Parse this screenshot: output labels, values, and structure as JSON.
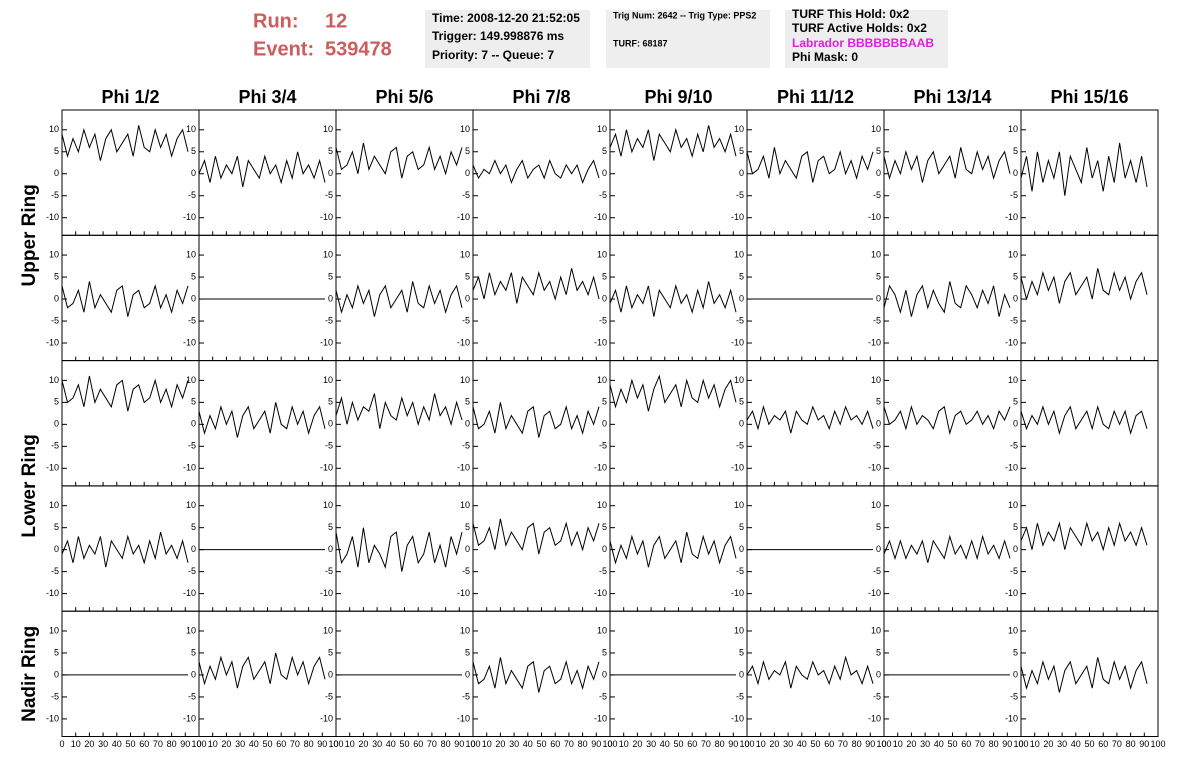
{
  "header": {
    "run_label": "Run:",
    "run": "12",
    "event_label": "Event:",
    "event": "539478",
    "box1": [
      "Time: 2008-12-20 21:52:05",
      "Trigger: 149.998876 ms",
      "Priority: 7 -- Queue: 7"
    ],
    "box2": [
      "Trig Num: 2642 -- Trig Type: PPS2",
      "TURF: 68187"
    ],
    "box3": [
      "TURF This Hold: 0x2",
      "TURF Active Holds: 0x2",
      "Labrador BBBBBBBAAB",
      "Phi Mask: 0"
    ]
  },
  "chart_data": {
    "type": "line",
    "color": "#000000",
    "columns": [
      "Phi 1/2",
      "Phi 3/4",
      "Phi 5/6",
      "Phi 7/8",
      "Phi 9/10",
      "Phi 11/12",
      "Phi 13/14",
      "Phi 15/16"
    ],
    "rows": [
      "Upper Ring",
      "Lower Ring",
      "Nadir Ring"
    ],
    "xlim": [
      0,
      100
    ],
    "ylim": [
      -14,
      14.5
    ],
    "xticks": [
      0,
      10,
      20,
      30,
      40,
      50,
      60,
      70,
      80,
      90,
      100
    ],
    "yticks": [
      -10,
      -5,
      0,
      5,
      10
    ],
    "x": [
      0,
      4,
      8,
      12,
      16,
      20,
      24,
      28,
      32,
      36,
      40,
      44,
      48,
      52,
      56,
      60,
      64,
      68,
      72,
      76,
      80,
      84,
      88,
      92
    ],
    "series": [
      {
        "values": [
          9,
          4,
          8,
          5,
          10,
          6,
          9,
          3,
          8,
          10,
          5,
          7,
          9,
          4,
          11,
          6,
          5,
          10,
          6,
          9,
          4,
          8,
          10,
          5
        ]
      },
      {
        "values": [
          0,
          3,
          -2,
          4,
          -1,
          2,
          0,
          4,
          -3,
          3,
          1,
          -1,
          4,
          0,
          2,
          -2,
          3,
          -1,
          5,
          0,
          2,
          -1,
          3,
          -2
        ]
      },
      {
        "values": [
          6,
          1,
          2,
          5,
          0,
          7,
          1,
          4,
          2,
          0,
          5,
          6,
          -1,
          4,
          5,
          1,
          2,
          6,
          1,
          4,
          0,
          5,
          2,
          6
        ]
      },
      {
        "values": [
          2,
          -1,
          1,
          0,
          3,
          0,
          2,
          -2,
          1,
          3,
          -1,
          1,
          2,
          -1,
          3,
          0,
          -1,
          2,
          0,
          2,
          -2,
          1,
          3,
          -1
        ]
      },
      {
        "values": [
          6,
          9,
          4,
          10,
          5,
          8,
          6,
          10,
          3,
          9,
          7,
          5,
          10,
          6,
          8,
          4,
          9,
          5,
          11,
          6,
          8,
          5,
          9,
          4
        ]
      },
      {
        "values": [
          5,
          0,
          1,
          4,
          -1,
          6,
          0,
          3,
          1,
          -1,
          4,
          5,
          -2,
          3,
          4,
          0,
          1,
          5,
          0,
          3,
          -1,
          4,
          1,
          5
        ]
      },
      {
        "values": [
          4,
          -1,
          3,
          0,
          5,
          1,
          4,
          -2,
          3,
          5,
          0,
          2,
          4,
          -1,
          6,
          1,
          0,
          5,
          1,
          4,
          -1,
          3,
          5,
          0
        ]
      },
      {
        "values": [
          -1,
          4,
          -4,
          5,
          -2,
          3,
          -1,
          5,
          -5,
          4,
          1,
          -2,
          6,
          -1,
          3,
          -4,
          4,
          -2,
          7,
          -1,
          3,
          -2,
          4,
          -3
        ]
      },
      {
        "values": [
          3,
          -2,
          -1,
          2,
          -3,
          4,
          -2,
          1,
          -1,
          -3,
          2,
          3,
          -4,
          1,
          2,
          -2,
          -1,
          3,
          -2,
          1,
          -3,
          2,
          -1,
          3
        ]
      },
      {
        "values": [
          0,
          0,
          0,
          0,
          0,
          0,
          0,
          0,
          0,
          0,
          0,
          0,
          0,
          0,
          0,
          0,
          0,
          0,
          0,
          0,
          0,
          0,
          0,
          0
        ]
      },
      {
        "values": [
          2,
          -3,
          1,
          -2,
          3,
          -1,
          2,
          -4,
          1,
          3,
          -2,
          0,
          2,
          -3,
          4,
          -1,
          -2,
          3,
          -1,
          2,
          -3,
          1,
          3,
          -2
        ]
      },
      {
        "values": [
          2,
          5,
          0,
          6,
          1,
          4,
          2,
          6,
          -1,
          5,
          3,
          1,
          6,
          2,
          4,
          0,
          5,
          1,
          7,
          2,
          4,
          1,
          5,
          0
        ]
      },
      {
        "values": [
          -1,
          2,
          -3,
          3,
          -2,
          1,
          -1,
          3,
          -4,
          2,
          0,
          -2,
          3,
          -1,
          1,
          -3,
          2,
          -2,
          4,
          -1,
          1,
          -2,
          2,
          -3
        ]
      },
      {
        "values": [
          0,
          0,
          0,
          0,
          0,
          0,
          0,
          0,
          0,
          0,
          0,
          0,
          0,
          0,
          0,
          0,
          0,
          0,
          0,
          0,
          0,
          0,
          0,
          0
        ]
      },
      {
        "values": [
          -2,
          3,
          1,
          -3,
          2,
          -4,
          1,
          3,
          -2,
          2,
          -1,
          -3,
          4,
          -1,
          -2,
          3,
          1,
          -2,
          2,
          -1,
          3,
          -4,
          1,
          -2
        ]
      },
      {
        "values": [
          5,
          0,
          4,
          1,
          6,
          2,
          5,
          -1,
          4,
          6,
          1,
          3,
          5,
          0,
          7,
          2,
          1,
          6,
          2,
          5,
          0,
          4,
          6,
          1
        ]
      },
      {
        "values": [
          10,
          5,
          6,
          9,
          4,
          11,
          5,
          8,
          6,
          4,
          9,
          10,
          3,
          8,
          9,
          5,
          6,
          10,
          5,
          8,
          4,
          9,
          6,
          10
        ]
      },
      {
        "values": [
          3,
          -2,
          2,
          -1,
          4,
          0,
          3,
          -3,
          2,
          4,
          -1,
          1,
          3,
          -2,
          5,
          0,
          -1,
          4,
          0,
          3,
          -2,
          2,
          4,
          -1
        ]
      },
      {
        "values": [
          2,
          6,
          0,
          5,
          1,
          4,
          3,
          7,
          -1,
          5,
          2,
          1,
          6,
          2,
          5,
          0,
          4,
          1,
          7,
          2,
          4,
          0,
          5,
          1
        ]
      },
      {
        "values": [
          4,
          -1,
          0,
          3,
          -2,
          5,
          -1,
          2,
          0,
          -2,
          3,
          4,
          -3,
          2,
          3,
          -1,
          0,
          4,
          -1,
          2,
          -2,
          3,
          0,
          4
        ]
      },
      {
        "values": [
          9,
          4,
          8,
          5,
          10,
          6,
          9,
          3,
          8,
          11,
          5,
          7,
          9,
          4,
          10,
          6,
          5,
          10,
          6,
          9,
          4,
          8,
          10,
          5
        ]
      },
      {
        "values": [
          1,
          3,
          -1,
          4,
          0,
          2,
          1,
          3,
          -2,
          3,
          1,
          0,
          4,
          1,
          2,
          -1,
          3,
          0,
          4,
          1,
          2,
          0,
          3,
          -1
        ]
      },
      {
        "values": [
          4,
          0,
          1,
          3,
          -1,
          4,
          0,
          2,
          1,
          -1,
          3,
          4,
          -2,
          2,
          3,
          0,
          1,
          3,
          0,
          2,
          -1,
          3,
          1,
          4
        ]
      },
      {
        "values": [
          3,
          -1,
          2,
          0,
          4,
          0,
          3,
          -2,
          2,
          4,
          -1,
          1,
          3,
          -1,
          4,
          0,
          -1,
          3,
          0,
          3,
          -2,
          2,
          3,
          -1
        ]
      },
      {
        "values": [
          -1,
          2,
          -3,
          3,
          -2,
          1,
          -1,
          3,
          -4,
          2,
          0,
          -2,
          3,
          -1,
          1,
          -3,
          2,
          -2,
          4,
          -1,
          1,
          -2,
          2,
          -3
        ]
      },
      {
        "values": [
          0,
          0,
          0,
          0,
          0,
          0,
          0,
          0,
          0,
          0,
          0,
          0,
          0,
          0,
          0,
          0,
          0,
          0,
          0,
          0,
          0,
          0,
          0,
          0
        ]
      },
      {
        "values": [
          4,
          -3,
          -1,
          3,
          -4,
          5,
          -3,
          1,
          -1,
          -4,
          3,
          4,
          -5,
          1,
          3,
          -3,
          -1,
          4,
          -3,
          1,
          -4,
          3,
          -1,
          4
        ]
      },
      {
        "values": [
          6,
          1,
          2,
          5,
          0,
          7,
          1,
          4,
          2,
          0,
          5,
          6,
          -1,
          4,
          5,
          1,
          2,
          6,
          1,
          4,
          0,
          5,
          2,
          6
        ]
      },
      {
        "values": [
          2,
          -3,
          1,
          -2,
          3,
          -1,
          2,
          -4,
          1,
          3,
          -2,
          0,
          2,
          -3,
          4,
          -1,
          -2,
          3,
          -1,
          2,
          -3,
          1,
          3,
          -2
        ]
      },
      {
        "values": [
          0,
          0,
          0,
          0,
          0,
          0,
          0,
          0,
          0,
          0,
          0,
          0,
          0,
          0,
          0,
          0,
          0,
          0,
          0,
          0,
          0,
          0,
          0,
          0
        ]
      },
      {
        "values": [
          -1,
          2,
          -2,
          2,
          -2,
          1,
          -1,
          2,
          -3,
          2,
          0,
          -2,
          3,
          -1,
          1,
          -2,
          2,
          -2,
          3,
          -1,
          1,
          -2,
          2,
          -2
        ]
      },
      {
        "values": [
          2,
          5,
          0,
          6,
          1,
          4,
          2,
          6,
          0,
          5,
          3,
          1,
          6,
          2,
          4,
          0,
          5,
          1,
          6,
          2,
          4,
          1,
          5,
          1
        ]
      },
      {
        "values": [
          0,
          0,
          0,
          0,
          0,
          0,
          0,
          0,
          0,
          0,
          0,
          0,
          0,
          0,
          0,
          0,
          0,
          0,
          0,
          0,
          0,
          0,
          0,
          0
        ]
      },
      {
        "values": [
          3,
          -2,
          2,
          -1,
          4,
          0,
          3,
          -3,
          2,
          4,
          -1,
          1,
          3,
          -2,
          5,
          0,
          -1,
          4,
          0,
          3,
          -2,
          2,
          4,
          -1
        ]
      },
      {
        "values": [
          0,
          0,
          0,
          0,
          0,
          0,
          0,
          0,
          0,
          0,
          0,
          0,
          0,
          0,
          0,
          0,
          0,
          0,
          0,
          0,
          0,
          0,
          0,
          0
        ]
      },
      {
        "values": [
          3,
          -2,
          -1,
          2,
          -3,
          4,
          -2,
          1,
          -1,
          -3,
          2,
          3,
          -4,
          1,
          2,
          -2,
          -1,
          3,
          -2,
          1,
          -3,
          2,
          -1,
          3
        ]
      },
      {
        "values": [
          0,
          0,
          0,
          0,
          0,
          0,
          0,
          0,
          0,
          0,
          0,
          0,
          0,
          0,
          0,
          0,
          0,
          0,
          0,
          0,
          0,
          0,
          0,
          0
        ]
      },
      {
        "values": [
          0,
          2,
          -2,
          3,
          -1,
          1,
          0,
          3,
          -3,
          2,
          0,
          -1,
          3,
          0,
          1,
          -2,
          2,
          -1,
          4,
          0,
          1,
          -2,
          2,
          -2
        ]
      },
      {
        "values": [
          0,
          0,
          0,
          0,
          0,
          0,
          0,
          0,
          0,
          0,
          0,
          0,
          0,
          0,
          0,
          0,
          0,
          0,
          0,
          0,
          0,
          0,
          0,
          0
        ]
      },
      {
        "values": [
          2,
          -3,
          1,
          -2,
          3,
          -1,
          2,
          -4,
          1,
          3,
          -2,
          0,
          2,
          -3,
          4,
          -1,
          -2,
          3,
          -1,
          2,
          -3,
          1,
          3,
          -2
        ]
      }
    ]
  }
}
